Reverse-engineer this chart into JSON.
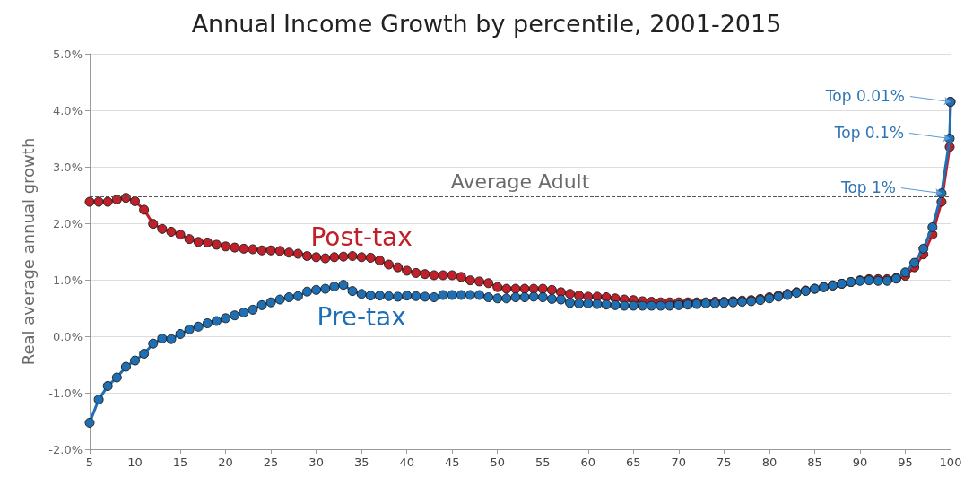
{
  "chart_data": {
    "type": "line",
    "title": "Annual Income Growth by percentile, 2001-2015",
    "ylabel": "Real average annual growth",
    "x": [
      5,
      6,
      7,
      8,
      9,
      10,
      11,
      12,
      13,
      14,
      15,
      16,
      17,
      18,
      19,
      20,
      21,
      22,
      23,
      24,
      25,
      26,
      27,
      28,
      29,
      30,
      31,
      32,
      33,
      34,
      35,
      36,
      37,
      38,
      39,
      40,
      41,
      42,
      43,
      44,
      45,
      46,
      47,
      48,
      49,
      50,
      51,
      52,
      53,
      54,
      55,
      56,
      57,
      58,
      59,
      60,
      61,
      62,
      63,
      64,
      65,
      66,
      67,
      68,
      69,
      70,
      71,
      72,
      73,
      74,
      75,
      76,
      77,
      78,
      79,
      80,
      81,
      82,
      83,
      84,
      85,
      86,
      87,
      88,
      89,
      90,
      91,
      92,
      93,
      94,
      95,
      96,
      97,
      98,
      99,
      99.9,
      99.99
    ],
    "series": [
      {
        "name": "Post-tax",
        "color": "#c0202a",
        "values": [
          2.38,
          2.38,
          2.38,
          2.42,
          2.45,
          2.39,
          2.24,
          1.99,
          1.9,
          1.85,
          1.8,
          1.72,
          1.67,
          1.66,
          1.62,
          1.59,
          1.57,
          1.55,
          1.54,
          1.52,
          1.52,
          1.51,
          1.48,
          1.46,
          1.42,
          1.4,
          1.38,
          1.4,
          1.41,
          1.42,
          1.4,
          1.39,
          1.34,
          1.27,
          1.22,
          1.16,
          1.12,
          1.1,
          1.08,
          1.08,
          1.08,
          1.05,
          0.99,
          0.97,
          0.94,
          0.87,
          0.84,
          0.84,
          0.84,
          0.84,
          0.84,
          0.82,
          0.78,
          0.75,
          0.72,
          0.7,
          0.7,
          0.69,
          0.67,
          0.65,
          0.64,
          0.62,
          0.61,
          0.6,
          0.6,
          0.6,
          0.6,
          0.6,
          0.6,
          0.61,
          0.61,
          0.62,
          0.63,
          0.64,
          0.66,
          0.69,
          0.72,
          0.75,
          0.78,
          0.81,
          0.84,
          0.87,
          0.9,
          0.93,
          0.96,
          0.99,
          1.01,
          1.01,
          1.01,
          1.03,
          1.07,
          1.22,
          1.45,
          1.8,
          2.38,
          3.35,
          4.15
        ]
      },
      {
        "name": "Pre-tax",
        "color": "#1f6fb5",
        "values": [
          -1.53,
          -1.12,
          -0.88,
          -0.73,
          -0.54,
          -0.43,
          -0.31,
          -0.13,
          -0.04,
          -0.05,
          0.04,
          0.12,
          0.17,
          0.23,
          0.27,
          0.32,
          0.37,
          0.42,
          0.47,
          0.55,
          0.6,
          0.65,
          0.69,
          0.71,
          0.79,
          0.82,
          0.84,
          0.88,
          0.91,
          0.8,
          0.75,
          0.72,
          0.72,
          0.71,
          0.7,
          0.72,
          0.71,
          0.7,
          0.69,
          0.73,
          0.73,
          0.73,
          0.73,
          0.73,
          0.69,
          0.67,
          0.67,
          0.69,
          0.69,
          0.7,
          0.69,
          0.66,
          0.65,
          0.59,
          0.58,
          0.58,
          0.57,
          0.56,
          0.55,
          0.54,
          0.54,
          0.54,
          0.54,
          0.54,
          0.54,
          0.55,
          0.56,
          0.57,
          0.58,
          0.58,
          0.59,
          0.6,
          0.61,
          0.62,
          0.64,
          0.67,
          0.7,
          0.73,
          0.77,
          0.8,
          0.84,
          0.87,
          0.9,
          0.93,
          0.96,
          0.98,
          0.99,
          0.98,
          0.98,
          1.02,
          1.13,
          1.3,
          1.55,
          1.93,
          2.53,
          3.5,
          4.15
        ]
      }
    ],
    "xlim": [
      5,
      100
    ],
    "xticks": [
      5,
      10,
      15,
      20,
      25,
      30,
      35,
      40,
      45,
      50,
      55,
      60,
      65,
      70,
      75,
      80,
      85,
      90,
      95,
      100
    ],
    "ylim": [
      -2,
      5
    ],
    "yticks": [
      {
        "value": -2,
        "label": "-2.0%"
      },
      {
        "value": -1,
        "label": "-1.0%"
      },
      {
        "value": 0,
        "label": "0.0%"
      },
      {
        "value": 1,
        "label": "1.0%"
      },
      {
        "value": 2,
        "label": "2.0%"
      },
      {
        "value": 3,
        "label": "3.0%"
      },
      {
        "value": 4,
        "label": "4.0%"
      },
      {
        "value": 5,
        "label": "5.0%"
      }
    ],
    "grid": "y",
    "legend": false,
    "marker": "circle",
    "line_style": "solid",
    "ref_lines": [
      {
        "axis": "y",
        "value": 2.47,
        "label": "Average Adult",
        "color": "#555555",
        "line_style": "dashed"
      }
    ],
    "annotations": [
      {
        "text": "Top 0.01%",
        "x": 99.99,
        "y": 4.15
      },
      {
        "text": "Top 0.1%",
        "x": 99.9,
        "y": 3.5
      },
      {
        "text": "Top 1%",
        "x": 99,
        "y": 2.53
      }
    ]
  }
}
